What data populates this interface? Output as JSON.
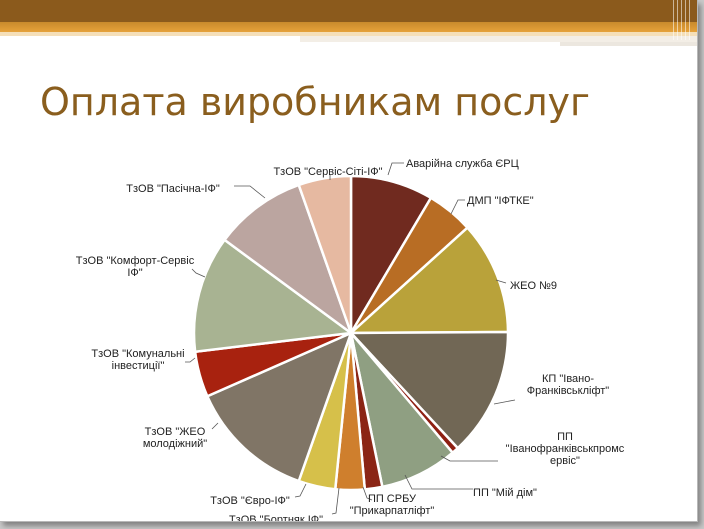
{
  "slide": {
    "title": "Оплата виробникам послуг"
  },
  "chart_data": {
    "type": "pie",
    "title": "",
    "slices": [
      {
        "lines": [
          "Аварійна служба ЄРЦ"
        ],
        "value": 8.5,
        "color": "#702a1f"
      },
      {
        "lines": [
          "ДМП \"ІФТКЕ\""
        ],
        "value": 4.8,
        "color": "#b86d24"
      },
      {
        "lines": [
          "ЖЕО №9"
        ],
        "value": 11.6,
        "color": "#b9a23a"
      },
      {
        "lines": [
          "КП \"Івано-",
          "Франківськліфт\""
        ],
        "value": 13.2,
        "color": "#716755"
      },
      {
        "lines": [
          "ПП",
          "\"Іванофранківськпромс",
          "ервіс\""
        ],
        "value": 0.7,
        "color": "#8e1f12"
      },
      {
        "lines": [
          "ПП \"Мій дім\""
        ],
        "value": 8.0,
        "color": "#8f9f82"
      },
      {
        "lines": [
          "ПП СРБУ",
          "\"Прикарпатліфт\""
        ],
        "value": 1.8,
        "color": "#8b2515"
      },
      {
        "lines": [
          "ТзОВ \"Бортняк ІФ\""
        ],
        "value": 3.0,
        "color": "#cf7f2d"
      },
      {
        "lines": [
          "ТзОВ \"Євро-ІФ\""
        ],
        "value": 3.8,
        "color": "#d6c04a"
      },
      {
        "lines": [
          "ТзОВ \"ЖЕО",
          "молодіжний\""
        ],
        "value": 13.0,
        "color": "#807566"
      },
      {
        "lines": [
          "ТзОВ \"Комунальні",
          "інвестиції\""
        ],
        "value": 4.7,
        "color": "#a8220f"
      },
      {
        "lines": [
          "ТзОВ \"Комфорт-Сервіс",
          "ІФ\""
        ],
        "value": 12.0,
        "color": "#a8b392"
      },
      {
        "lines": [
          "ТзОВ \"Пасічна-ІФ\""
        ],
        "value": 9.5,
        "color": "#bba5a0"
      },
      {
        "lines": [
          "ТзОВ \"Сервіс-Сіті-ІФ\""
        ],
        "value": 5.4,
        "color": "#e6b9a1"
      }
    ]
  }
}
